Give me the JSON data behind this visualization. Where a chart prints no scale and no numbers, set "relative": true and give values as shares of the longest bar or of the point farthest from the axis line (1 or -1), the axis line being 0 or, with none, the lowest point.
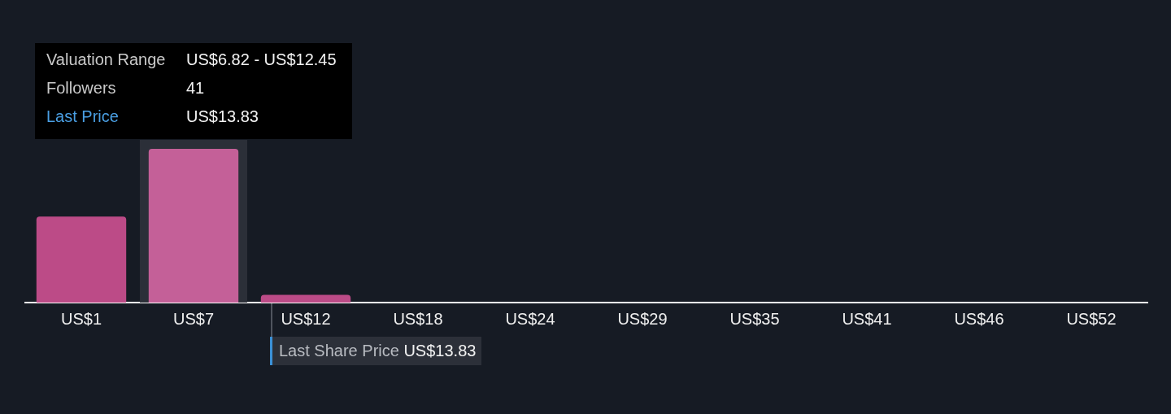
{
  "chart_data": {
    "type": "bar",
    "relative": true,
    "categories": [
      "US$1",
      "US$7",
      "US$12",
      "US$18",
      "US$24",
      "US$29",
      "US$35",
      "US$41",
      "US$46",
      "US$52"
    ],
    "values": [
      0.56,
      1,
      0.05,
      0,
      0,
      0,
      0,
      0,
      0,
      0
    ],
    "colors": [
      "#bc4b87",
      "#c46098",
      "#bc4b87",
      "#bc4b87",
      "#bc4b87",
      "#bc4b87",
      "#bc4b87",
      "#bc4b87",
      "#bc4b87",
      "#bc4b87"
    ],
    "bands": [
      {
        "axis": "x",
        "from": "US$7",
        "to": "US$7",
        "color": "#2b2f38"
      }
    ],
    "annotations": [
      "Valuation Range",
      "US$6.82 - US$12.45",
      "Followers",
      "41",
      "Last Price",
      "US$13.83",
      "Last Share Price US$13.83"
    ]
  }
}
